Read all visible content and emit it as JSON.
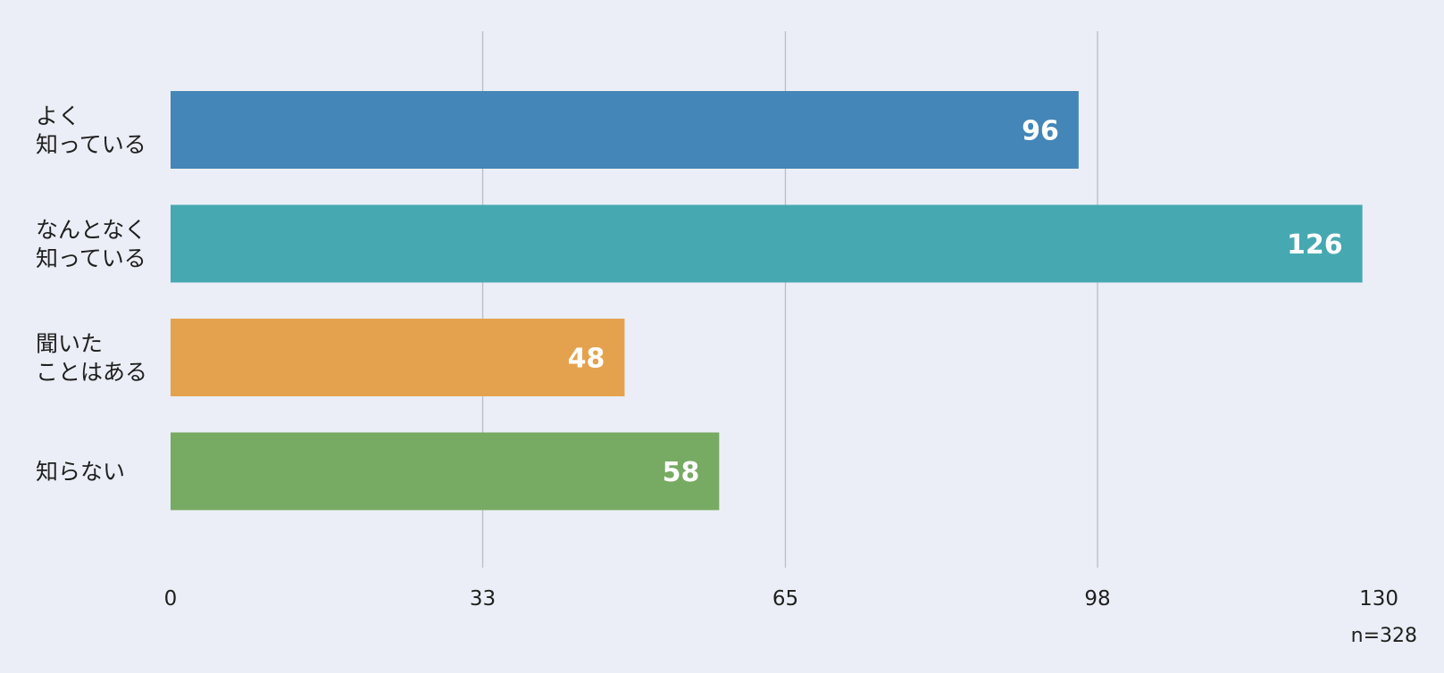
{
  "chart_data": {
    "type": "bar",
    "orientation": "horizontal",
    "categories": [
      "よく\n知っている",
      "なんとなく\n知っている",
      "聞いた\nことはある",
      "知らない"
    ],
    "values": [
      96,
      126,
      48,
      58
    ],
    "colors": [
      "#4486b7",
      "#46a8b1",
      "#e4a24e",
      "#77aa62"
    ],
    "xlim": [
      0,
      130
    ],
    "ticks": [
      "0",
      "33",
      "65",
      "98",
      "130"
    ],
    "grid": true,
    "title": "",
    "xlabel": "",
    "ylabel": "",
    "note": "n=328"
  }
}
